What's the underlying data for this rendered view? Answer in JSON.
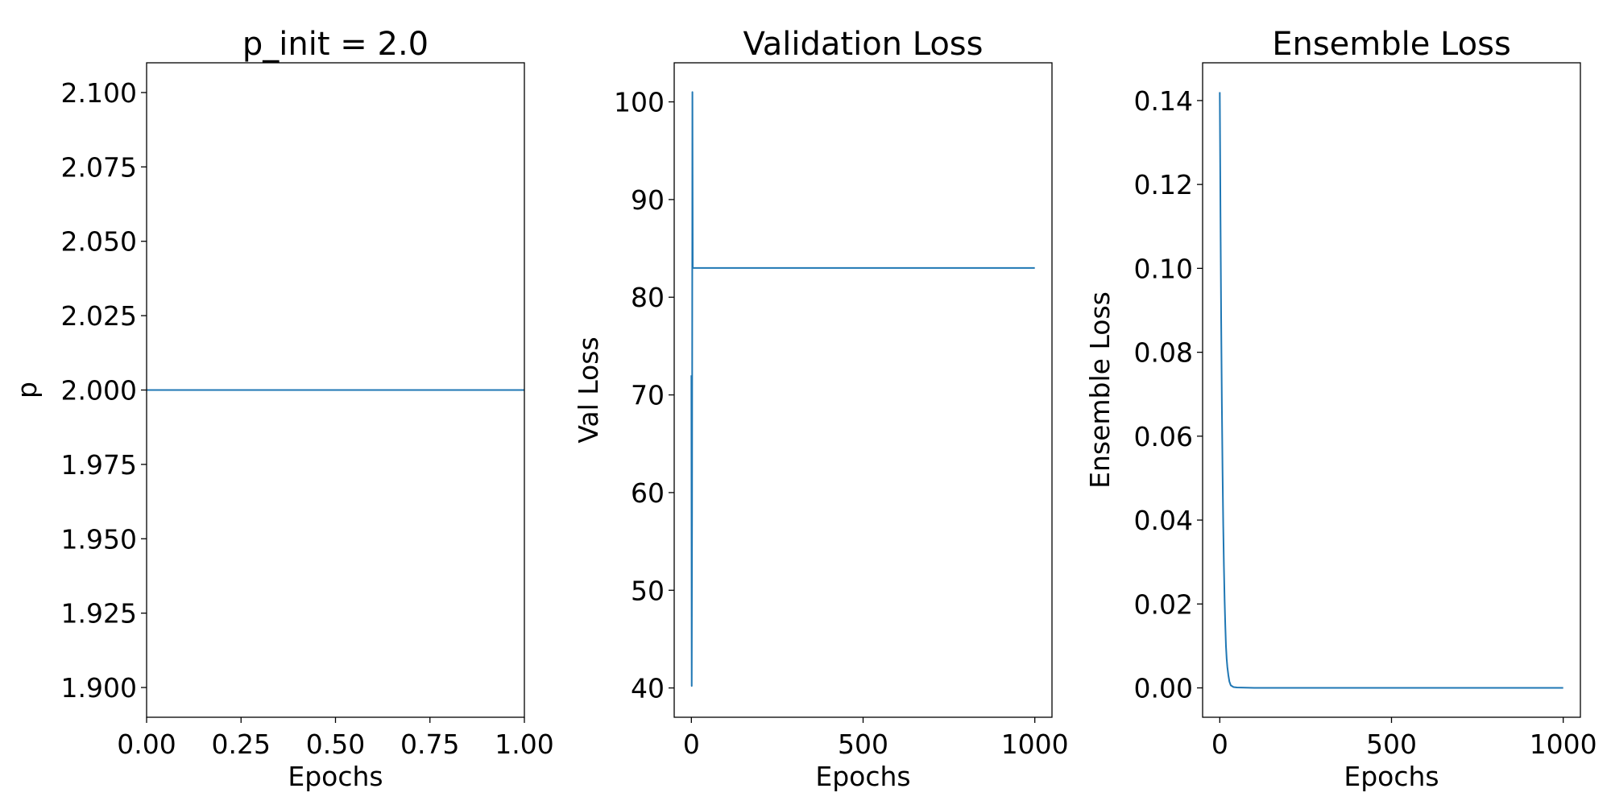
{
  "chart_data": [
    {
      "type": "line",
      "title": "p_init = 2.0",
      "xlabel": "Epochs",
      "ylabel": "p",
      "xlim": [
        0,
        1
      ],
      "ylim": [
        1.89,
        2.11
      ],
      "xticks": [
        0.0,
        0.25,
        0.5,
        0.75,
        1.0
      ],
      "xtick_labels": [
        "0.00",
        "0.25",
        "0.50",
        "0.75",
        "1.00"
      ],
      "yticks": [
        1.9,
        1.925,
        1.95,
        1.975,
        2.0,
        2.025,
        2.05,
        2.075,
        2.1
      ],
      "ytick_labels": [
        "1.900",
        "1.925",
        "1.950",
        "1.975",
        "2.000",
        "2.025",
        "2.050",
        "2.075",
        "2.100"
      ],
      "color": "#1f77b4",
      "grid": false,
      "series": [
        {
          "x": [
            0,
            1
          ],
          "y": [
            2.0,
            2.0
          ]
        }
      ]
    },
    {
      "type": "line",
      "title": "Validation Loss",
      "xlabel": "Epochs",
      "ylabel": "Val Loss",
      "xlim": [
        -50,
        1050
      ],
      "ylim": [
        37,
        104
      ],
      "xticks": [
        0,
        500,
        1000
      ],
      "xtick_labels": [
        "0",
        "500",
        "1000"
      ],
      "yticks": [
        40,
        50,
        60,
        70,
        80,
        90,
        100
      ],
      "ytick_labels": [
        "40",
        "50",
        "60",
        "70",
        "80",
        "90",
        "100"
      ],
      "color": "#1f77b4",
      "grid": false,
      "series": [
        {
          "x": [
            0,
            1,
            2,
            3,
            4,
            5,
            1000
          ],
          "y": [
            72,
            40.2,
            58,
            101,
            83,
            83,
            83
          ]
        }
      ]
    },
    {
      "type": "line",
      "title": "Ensemble Loss",
      "xlabel": "Epochs",
      "ylabel": "Ensemble Loss",
      "xlim": [
        -50,
        1050
      ],
      "ylim": [
        -0.007,
        0.149
      ],
      "xticks": [
        0,
        500,
        1000
      ],
      "xtick_labels": [
        "0",
        "500",
        "1000"
      ],
      "yticks": [
        0.0,
        0.02,
        0.04,
        0.06,
        0.08,
        0.1,
        0.12,
        0.14
      ],
      "ytick_labels": [
        "0.00",
        "0.02",
        "0.04",
        "0.06",
        "0.08",
        "0.10",
        "0.12",
        "0.14"
      ],
      "color": "#1f77b4",
      "grid": false,
      "series": [
        {
          "x": [
            0,
            2,
            4,
            6,
            8,
            10,
            12,
            14,
            16,
            18,
            20,
            22,
            25,
            28,
            32,
            40,
            50,
            100,
            500,
            1000
          ],
          "y": [
            0.142,
            0.113,
            0.088,
            0.068,
            0.052,
            0.039,
            0.029,
            0.021,
            0.015,
            0.01,
            0.007,
            0.005,
            0.003,
            0.0015,
            0.0006,
            0.0002,
            0.0001,
            0.0,
            0.0,
            0.0
          ]
        }
      ]
    }
  ]
}
